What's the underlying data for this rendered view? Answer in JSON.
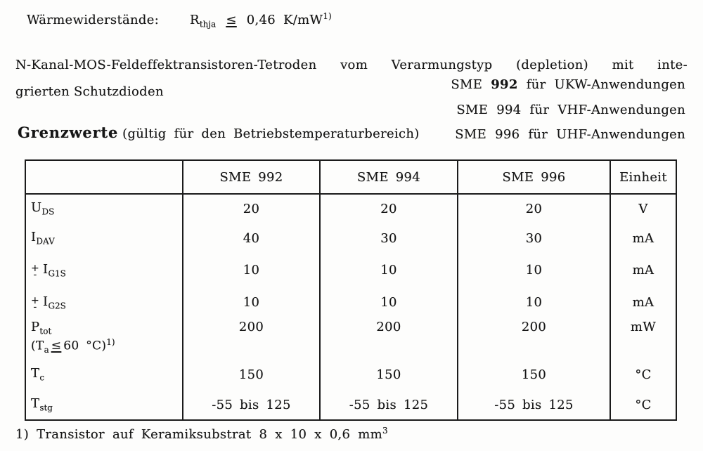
{
  "symbols": {
    "plus": "+",
    "minus": "-",
    "leq": "≤"
  },
  "thermal": {
    "label": "Wärmewiderstände:",
    "symbol": "R",
    "symbol_sub": "thja",
    "value": "0,46",
    "unit": "K/mW",
    "footnote_ref": "1)"
  },
  "intro": {
    "line1": "N-Kanal-MOS-Feldeffektransistoren-Tetroden vom Verarmungstyp (depletion) mit inte-",
    "line2": "grierten Schutzdioden"
  },
  "applications": [
    {
      "prefix": "SME",
      "number": "992",
      "suffix": "für UKW-Anwendungen"
    },
    {
      "prefix": "SME",
      "number": "994",
      "suffix": "für VHF-Anwendungen"
    },
    {
      "prefix": "SME",
      "number": "996",
      "suffix": "für UHF-Anwendungen"
    }
  ],
  "limits": {
    "title": "Grenzwerte",
    "subtitle": "(gültig für den Betriebstemperaturbereich)"
  },
  "table": {
    "col_headers": [
      "SME 992",
      "SME 994",
      "SME 996",
      "Einheit"
    ],
    "rows": [
      {
        "base": "U",
        "sub": "DS",
        "v": [
          "20",
          "20",
          "20"
        ],
        "unit": "V"
      },
      {
        "base": "I",
        "sub": "DAV",
        "v": [
          "40",
          "30",
          "30"
        ],
        "unit": "mA"
      },
      {
        "base": "I",
        "sub": "G1S",
        "pm": true,
        "v": [
          "10",
          "10",
          "10"
        ],
        "unit": "mA"
      },
      {
        "base": "I",
        "sub": "G2S",
        "pm": true,
        "v": [
          "10",
          "10",
          "10"
        ],
        "unit": "mA"
      },
      {
        "base": "P",
        "sub": "tot",
        "cond": {
          "open": "(T",
          "sub": "a",
          "value": "60",
          "close": "°C)",
          "fn": "1)"
        },
        "v": [
          "200",
          "200",
          "200"
        ],
        "unit": "mW"
      },
      {
        "base": "T",
        "sub": "c",
        "v": [
          "150",
          "150",
          "150"
        ],
        "unit": "°C"
      },
      {
        "base": "T",
        "sub": "stg",
        "v": [
          "-55 bis 125",
          "-55 bis 125",
          "-55 bis 125"
        ],
        "unit": "°C"
      }
    ]
  },
  "footnote": {
    "text": "1) Transistor auf Keramiksubstrat 8 x 10 x 0,6 mm",
    "sup": "3"
  }
}
